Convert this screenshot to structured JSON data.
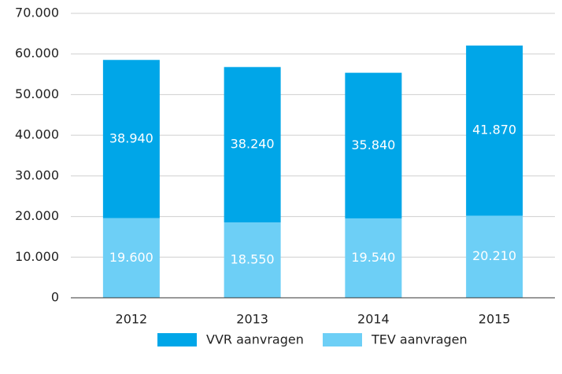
{
  "chart_data": {
    "type": "stacked-bar",
    "categories": [
      "2012",
      "2013",
      "2014",
      "2015"
    ],
    "series": [
      {
        "name": "VVR aanvragen",
        "color": "#00a6e8",
        "values": [
          38940,
          38240,
          35840,
          41870
        ],
        "value_labels": [
          "38.940",
          "38.240",
          "35.840",
          "41.870"
        ]
      },
      {
        "name": "TEV aanvragen",
        "color": "#6dcff6",
        "values": [
          19600,
          18550,
          19540,
          20210
        ],
        "value_labels": [
          "19.600",
          "18.550",
          "19.540",
          "20.210"
        ]
      }
    ],
    "ylim": [
      0,
      70000
    ],
    "yticks": [
      0,
      {
        "value": 10000,
        "label": "10.000"
      },
      {
        "value": 20000,
        "label": "20.000"
      },
      {
        "value": 30000,
        "label": "30.000"
      },
      {
        "value": 40000,
        "label": "40.000"
      },
      {
        "value": 50000,
        "label": "50.000"
      },
      {
        "value": 60000,
        "label": "60.000"
      },
      {
        "value": 70000,
        "label": "70.000"
      }
    ],
    "grid": true,
    "legend": "bottom"
  }
}
